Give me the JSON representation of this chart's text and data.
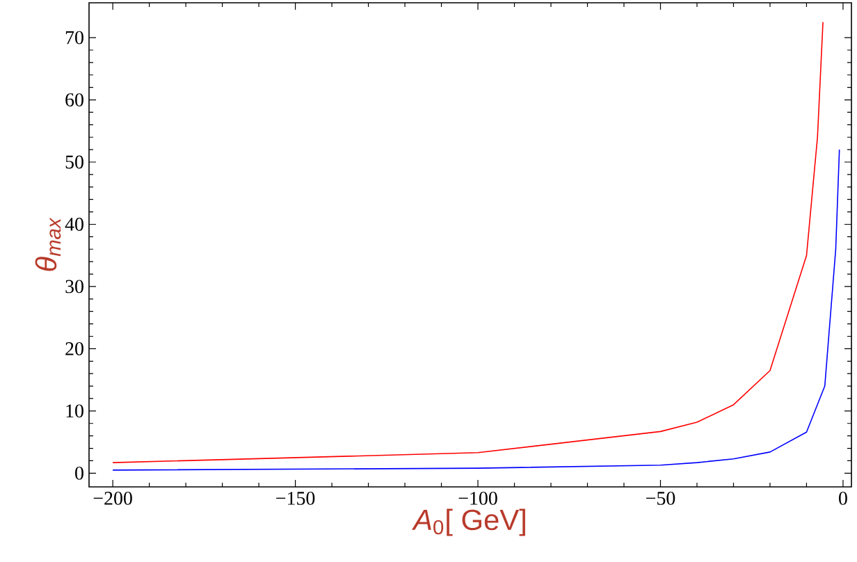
{
  "chart_data": {
    "type": "line",
    "xlabel": "*A*$_{0}$[ GeV]",
    "ylabel": "θ$_{max}$",
    "xlim": [
      -206.5,
      2.3
    ],
    "ylim": [
      -2.2,
      75.6
    ],
    "xticks": [
      {
        "value": -200,
        "label": "−200"
      },
      {
        "value": -150,
        "label": "−150"
      },
      {
        "value": -100,
        "label": "−100"
      },
      {
        "value": -50,
        "label": "−50"
      },
      {
        "value": 0,
        "label": "0"
      }
    ],
    "yticks": [
      {
        "value": 0,
        "label": "0"
      },
      {
        "value": 10,
        "label": "10"
      },
      {
        "value": 20,
        "label": "20"
      },
      {
        "value": 30,
        "label": "30"
      },
      {
        "value": 40,
        "label": "40"
      },
      {
        "value": 50,
        "label": "50"
      },
      {
        "value": 60,
        "label": "60"
      },
      {
        "value": 70,
        "label": "70"
      }
    ],
    "grid": false,
    "marker": "none",
    "line_style": "solid",
    "series": [
      {
        "color": "#ff0000",
        "x": [
          -200,
          -100,
          -50,
          -40,
          -30,
          -20,
          -10,
          -7,
          -5.5
        ],
        "values": [
          1.7,
          3.3,
          6.7,
          8.2,
          11,
          16.5,
          35,
          54,
          72.5
        ]
      },
      {
        "color": "#0000ff",
        "x": [
          -200,
          -100,
          -50,
          -40,
          -30,
          -20,
          -10,
          -5,
          -2,
          -1
        ],
        "values": [
          0.5,
          0.8,
          1.3,
          1.7,
          2.3,
          3.4,
          6.6,
          14,
          36,
          52
        ]
      }
    ]
  }
}
